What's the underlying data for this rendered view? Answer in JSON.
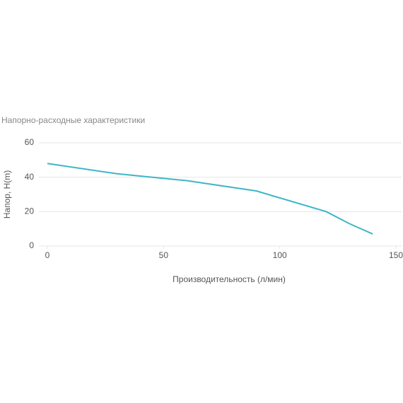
{
  "chart_data": {
    "type": "line",
    "title": "Напорно-расходные характеристики",
    "x_label": "Производительность (л/мин)",
    "y_label": "Напор, H(m)",
    "x": [
      0,
      30,
      60,
      90,
      120,
      130,
      140
    ],
    "series": [
      {
        "color": "#3db6c6",
        "values": [
          48,
          42,
          38,
          32,
          20,
          13,
          7
        ]
      }
    ],
    "xlim": [
      0,
      150
    ],
    "xticks": [
      0,
      50,
      100,
      150
    ],
    "ylim": [
      0,
      60
    ],
    "yticks": [
      0,
      20,
      40,
      60
    ],
    "grid": true
  }
}
